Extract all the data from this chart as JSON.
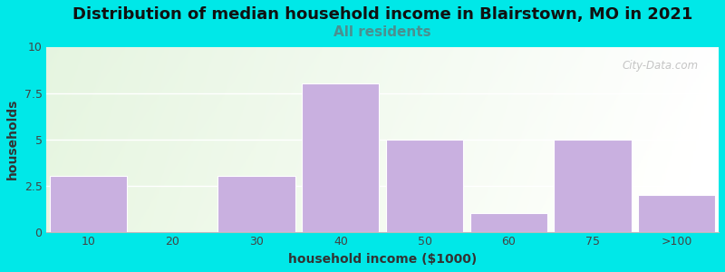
{
  "title": "Distribution of median household income in Blairstown, MO in 2021",
  "subtitle": "All residents",
  "xlabel": "household income ($1000)",
  "ylabel": "households",
  "bar_labels": [
    "10",
    "20",
    "30",
    "40",
    "50",
    "60",
    "75",
    ">100"
  ],
  "bar_values": [
    3,
    0,
    3,
    8,
    5,
    1,
    5,
    2
  ],
  "bar_color": "#c9b0e0",
  "bar_edgecolor": "#c9b0e0",
  "ylim": [
    0,
    10
  ],
  "yticks": [
    0,
    2.5,
    5,
    7.5,
    10
  ],
  "background_outer": "#00e8e8",
  "title_fontsize": 13,
  "title_color": "#111111",
  "subtitle_color": "#4a9090",
  "subtitle_fontsize": 11,
  "watermark": "City-Data.com",
  "axis_label_fontsize": 10,
  "tick_fontsize": 9
}
